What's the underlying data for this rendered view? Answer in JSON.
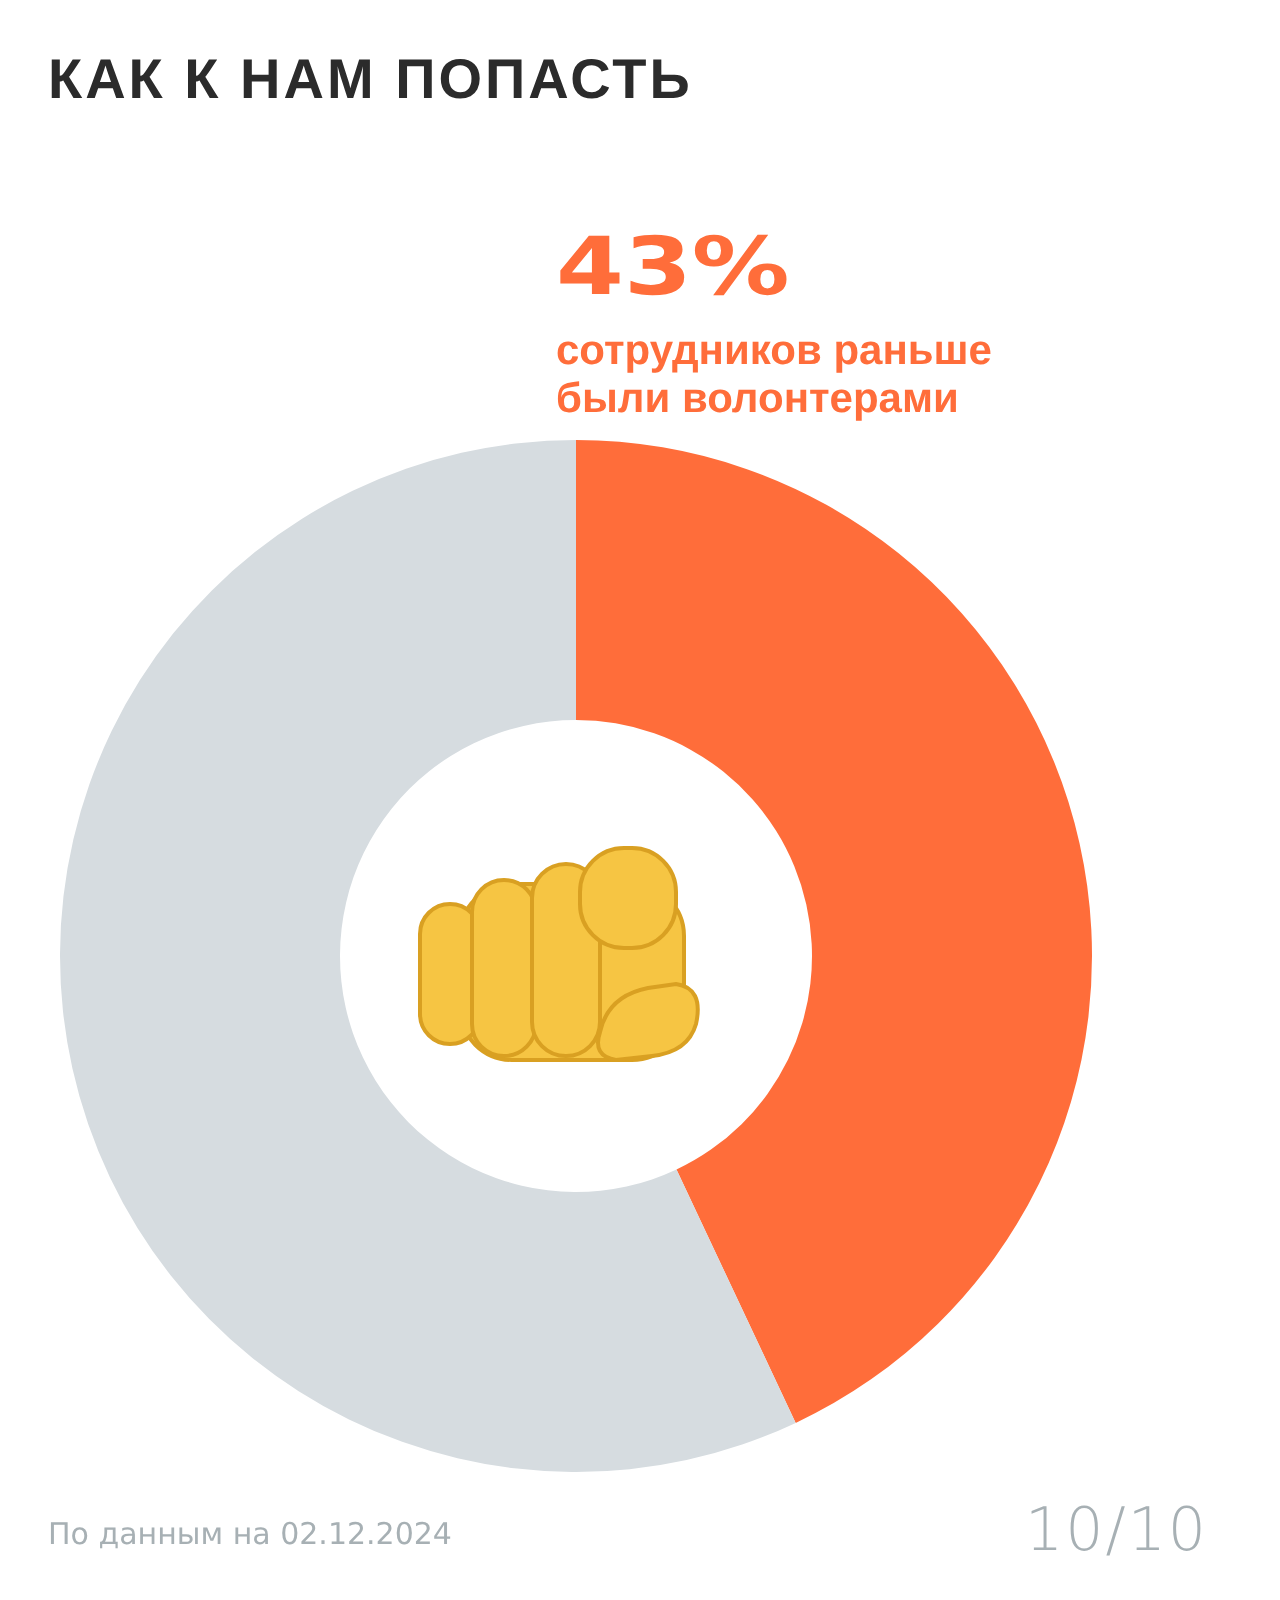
{
  "chart_data": {
    "type": "donut",
    "title": "КАК К НАМ ПОПАСТЬ",
    "categories": [
      "сотрудников раньше были волонтерами",
      null
    ],
    "values": [
      43,
      57
    ],
    "colors": [
      "#ff6d3a",
      "#d6dce0"
    ],
    "value_labels": [
      "43%",
      null
    ],
    "annotations": [
      "По данным на 02.12.2024",
      "10/10"
    ]
  }
}
